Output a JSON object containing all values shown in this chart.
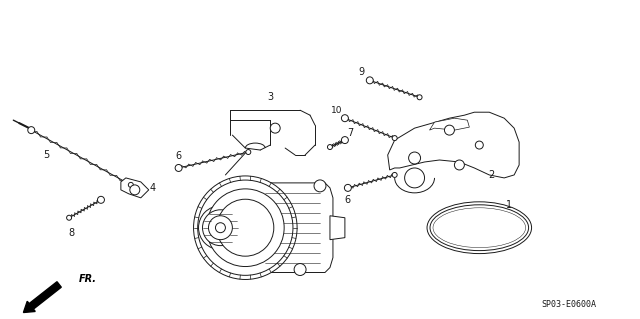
{
  "background_color": "#ffffff",
  "fig_width": 6.4,
  "fig_height": 3.19,
  "dpi": 100,
  "diagram_code_text": "SP03-E0600A",
  "line_color": "#1a1a1a",
  "text_color": "#1a1a1a",
  "line_width": 0.7
}
